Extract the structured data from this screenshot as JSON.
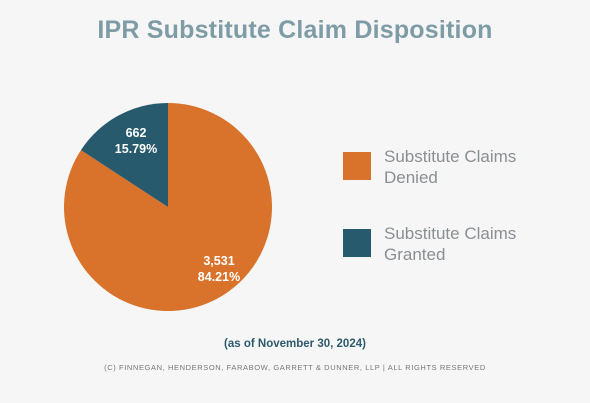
{
  "chart_data": {
    "type": "pie",
    "title": "IPR Substitute Claim Disposition",
    "slices": [
      {
        "label": "Substitute Claims Denied",
        "value": 3531,
        "count_label": "3,531",
        "percent_label": "84.21%",
        "color": "#d9732b"
      },
      {
        "label": "Substitute Claims Granted",
        "value": 662,
        "count_label": "662",
        "percent_label": "15.79%",
        "color": "#285a6d"
      }
    ],
    "legend": {
      "placement": "right"
    }
  },
  "legend_items": [
    {
      "line1": "Substitute Claims",
      "line2": "Denied"
    },
    {
      "line1": "Substitute Claims",
      "line2": "Granted"
    }
  ],
  "note": "(as of November 30, 2024)",
  "copyright": "(C) FINNEGAN, HENDERSON, FARABOW, GARRETT & DUNNER, LLP | ALL RIGHTS RESERVED"
}
